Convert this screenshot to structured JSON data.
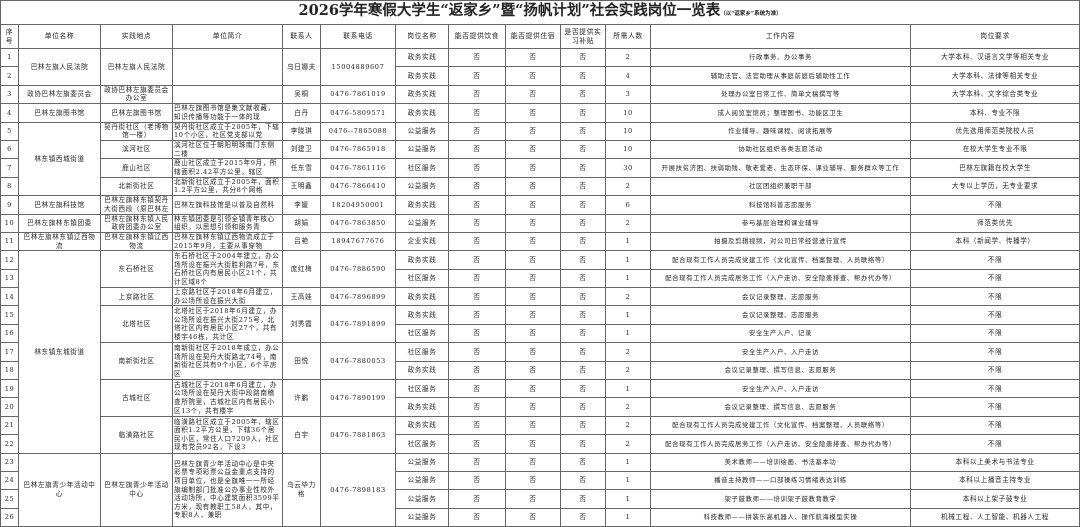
{
  "title": "2026学年寒假大学生“返家乡”暨“扬帆计划”社会实践岗位一览表",
  "title_note": "（以“返家乡”系统为准）",
  "headers": [
    "序号",
    "单位名称",
    "实践地点",
    "单位简介",
    "联系人",
    "联系电话",
    "岗位名称",
    "能否提供饮食",
    "能否提供住宿",
    "是否提供实习补贴",
    "所需人数",
    "工作内容",
    "岗位要求"
  ],
  "units": [
    {
      "name": "巴林左旗人民法院",
      "sites": [
        {
          "location": "巴林左旗人民法院",
          "intro": "",
          "contact": "乌日娜夫",
          "phone": "15004889607",
          "positions": [
            {
              "no": "1",
              "title": "政务实践",
              "food": "否",
              "lodging": "否",
              "subsidy": "否",
              "count": "2",
              "content": "行政事务、办公事务",
              "requirement": "大学本科、汉语言文学等相关专业"
            },
            {
              "no": "2",
              "title": "政务实践",
              "food": "否",
              "lodging": "否",
              "subsidy": "否",
              "count": "4",
              "content": "辅助法官、法官助理从事庭前庭后辅助性工作",
              "requirement": "大学本科、法律等相关专业"
            }
          ]
        }
      ]
    },
    {
      "name": "政协巴林左旗委员会",
      "sites": [
        {
          "location": "政协巴林左旗委员会办公室",
          "intro": "",
          "contact": "吴桐",
          "phone": "0476-7861019",
          "positions": [
            {
              "no": "3",
              "title": "政务实践",
              "food": "否",
              "lodging": "否",
              "subsidy": "否",
              "count": "3",
              "content": "处理办公室日常工作、简单文稿撰写等",
              "requirement": "大学本科、文字综合类专业"
            }
          ]
        }
      ]
    },
    {
      "name": "巴林左旗图书馆",
      "sites": [
        {
          "location": "巴林左旗图书馆",
          "intro": "巴林左旗图书馆是集文献收藏，知识传播等功能于一体的现",
          "contact": "白丹",
          "phone": "0476-5809571",
          "positions": [
            {
              "no": "4",
              "title": "政务实践",
              "food": "否",
              "lodging": "否",
              "subsidy": "否",
              "count": "10",
              "content": "成人阅览室馆员；整理图书、功能区卫生",
              "requirement": "本科、专业不限"
            }
          ]
        }
      ]
    },
    {
      "name": "林东镇西城街道",
      "sites": [
        {
          "location": "契丹街社区（老博物馆一楼）",
          "intro": "契丹街社区成立于2005年，下辖10个小区，社区党支部以党",
          "contact": "李晓琪",
          "phone": "0476--7865088",
          "positions": [
            {
              "no": "5",
              "title": "公益服务",
              "food": "否",
              "lodging": "否",
              "subsidy": "否",
              "count": "10",
              "content": "作业辅导、趣味课程、阅读拓展等",
              "requirement": "优先选用师范类院校人员"
            }
          ]
        },
        {
          "location": "滨河社区",
          "intro": "滨河社区位于朝阳明珠南门东侧二楼",
          "contact": "刘建卫",
          "phone": "0476-7865918",
          "positions": [
            {
              "no": "6",
              "title": "公益服务",
              "food": "否",
              "lodging": "否",
              "subsidy": "否",
              "count": "10",
              "content": "协助社区组织各类志愿活动",
              "requirement": "在校大学生专业不限"
            }
          ]
        },
        {
          "location": "鹿山社区",
          "intro": "鹿山社区成立于2015年9月，所辖面积2.42平方公里，辖区",
          "contact": "任东雪",
          "phone": "0476-7861116",
          "positions": [
            {
              "no": "7",
              "title": "社区服务",
              "food": "否",
              "lodging": "否",
              "subsidy": "否",
              "count": "30",
              "content": "开展扶贫济困、扶弱助残、敬老爱老、生态环保、课业辅导、服务群众等工作",
              "requirement": "巴林左旗籍在校大学生"
            }
          ]
        },
        {
          "location": "北新街社区",
          "intro": "北新街社区成立于2005年，面积1.2平方公里，共分8个网格",
          "contact": "王明鑫",
          "phone": "0476-7866410",
          "positions": [
            {
              "no": "8",
              "title": "公益服务",
              "food": "否",
              "lodging": "否",
              "subsidy": "否",
              "count": "2",
              "content": "社区团组织兼职干部",
              "requirement": "大专以上学历，无专业要求"
            }
          ]
        }
      ]
    },
    {
      "name": "巴林左旗科技馆",
      "sites": [
        {
          "location": "巴林左旗林东镇契丹大街西段（原巴林左",
          "intro": "巴林左旗科技馆是以普及自然科",
          "contact": "李媛",
          "phone": "18204950001",
          "positions": [
            {
              "no": "9",
              "title": "政务实践",
              "food": "否",
              "lodging": "否",
              "subsidy": "否",
              "count": "6",
              "content": "科技馆科普志愿服务",
              "requirement": "不限"
            }
          ]
        }
      ]
    },
    {
      "name": "巴林左旗林东镇团委",
      "sites": [
        {
          "location": "巴林左旗林东镇人民政府团委办公室",
          "intro": "林东镇团委是引领全镇青年核心组织，以思想引领和服务青",
          "contact": "胡娟",
          "phone": "0476-7863850",
          "positions": [
            {
              "no": "10",
              "title": "公益服务",
              "food": "否",
              "lodging": "否",
              "subsidy": "否",
              "count": "2",
              "content": "参与基层治理和课业辅导",
              "requirement": "师范类优先"
            }
          ]
        }
      ]
    },
    {
      "name": "巴林左旗林东镇辽西物流",
      "sites": [
        {
          "location": "巴林左旗林东镇辽西物流",
          "intro": "巴林左旗林东镇辽西物流成立于2015年9月，主要从事穿物",
          "contact": "吕艳",
          "phone": "18947677676",
          "positions": [
            {
              "no": "11",
              "title": "企业实践",
              "food": "否",
              "lodging": "否",
              "subsidy": "否",
              "count": "1",
              "content": "拍摄及剪辑视频，对公司日常经营进行宣传",
              "requirement": "本科（新闻学、传播学）"
            }
          ]
        }
      ]
    },
    {
      "name": "林东镇东城街道",
      "sites": [
        {
          "location": "东石桥社区",
          "intro": "东石桥社区于2004年建立，办公场所设在振兴大街胜利路7号，东石桥社区内有居民小区21个，共计区域8个",
          "contact": "庞红梅",
          "phone": "0476-7886590",
          "positions": [
            {
              "no": "12",
              "title": "政务实践",
              "food": "否",
              "lodging": "否",
              "subsidy": "否",
              "count": "1",
              "content": "配合现有工作人员完成党建工作（文化宣传、档案整理、人员联络等）",
              "requirement": "不限"
            },
            {
              "no": "13",
              "title": "社区服务",
              "food": "否",
              "lodging": "否",
              "subsidy": "否",
              "count": "1",
              "content": "配合现有工作人员完成居务工作（入户走访、安全隐患排查、帮办代办等）",
              "requirement": "不限"
            }
          ]
        },
        {
          "location": "上京路社区",
          "intro": "上京路社区于2018年6月建立，办公场所设在振兴大街",
          "contact": "王高娃",
          "phone": "0476-7896899",
          "positions": [
            {
              "no": "14",
              "title": "政务实践",
              "food": "否",
              "lodging": "否",
              "subsidy": "否",
              "count": "2",
              "content": "会议记录整理、志愿服务",
              "requirement": "不限"
            }
          ]
        },
        {
          "location": "北塔社区",
          "intro": "北塔社区于2018年6月建立，办公场所设在振兴大街275号，北塔社区内有居民小区27个，共有楼宇46栋，共计区",
          "contact": "刘秀霞",
          "phone": "0476-7891899",
          "positions": [
            {
              "no": "15",
              "title": "政务实践",
              "food": "否",
              "lodging": "否",
              "subsidy": "否",
              "count": "1",
              "content": "会议记录整理、志愿服务",
              "requirement": "不限"
            },
            {
              "no": "16",
              "title": "社区服务",
              "food": "否",
              "lodging": "否",
              "subsidy": "否",
              "count": "1",
              "content": "安全生产入户、记录",
              "requirement": "不限"
            }
          ]
        },
        {
          "location": "南新街社区",
          "intro": "南新街社区于2018年成立，办公场所设在契丹大街路北74号，南新街社区共有9个小区，6个平房区",
          "contact": "田悦",
          "phone": "0476-7880053",
          "positions": [
            {
              "no": "17",
              "title": "社区服务",
              "food": "否",
              "lodging": "否",
              "subsidy": "否",
              "count": "2",
              "content": "安全生产入户、入户走访",
              "requirement": "不限"
            },
            {
              "no": "18",
              "title": "政务实践",
              "food": "否",
              "lodging": "否",
              "subsidy": "否",
              "count": "2",
              "content": "会议记录整理、撰写信息、志愿服务",
              "requirement": "不限"
            }
          ]
        },
        {
          "location": "古城社区",
          "intro": "古城社区于2018年6月建立，办公场所设在契丹大街中段路南稽查所院里，古城社区内有居民小区13个，共有楼宇",
          "contact": "许鹏",
          "phone": "0476-7890199",
          "positions": [
            {
              "no": "19",
              "title": "社区服务",
              "food": "否",
              "lodging": "否",
              "subsidy": "否",
              "count": "1",
              "content": "安全生产入户、入户走访",
              "requirement": "不限"
            },
            {
              "no": "20",
              "title": "政务实践",
              "food": "否",
              "lodging": "否",
              "subsidy": "否",
              "count": "2",
              "content": "会议记录整理、撰写信息、志愿服务",
              "requirement": "不限"
            }
          ]
        },
        {
          "location": "临潢路社区",
          "intro": "临潢路社区成立于2005年，辖区面积1.2平方公里，下辖36个居民小区，常住人口7209人，社区现有党员92名，下设3",
          "contact": "白宇",
          "phone": "0476-7881863",
          "positions": [
            {
              "no": "21",
              "title": "政务实践",
              "food": "否",
              "lodging": "否",
              "subsidy": "否",
              "count": "2",
              "content": "配合现有工作人员完成党建工作（文化宣传、档案整理、人员联络等）",
              "requirement": "不限"
            },
            {
              "no": "22",
              "title": "社区服务",
              "food": "否",
              "lodging": "否",
              "subsidy": "否",
              "count": "2",
              "content": "配合现有工作人员完成居务工作（入户走访、安全隐患排查、帮办代办等）",
              "requirement": "不限"
            }
          ]
        }
      ]
    },
    {
      "name": "巴林左旗青少年活动中心",
      "sites": [
        {
          "location": "巴林左旗青少年活动中心",
          "intro": "巴林左旗青少年活动中心是中央彩票专项彩票公益金重点支持的项目单位，也是全旗唯一一所经旗编制部门批准公办事业性校外活动场所，中心建筑面积3599平方米，现有教职工58人，其中，专职8人，兼职",
          "contact": "乌云毕力格",
          "phone": "0476-7898183",
          "positions": [
            {
              "no": "23",
              "title": "公益服务",
              "food": "否",
              "lodging": "否",
              "subsidy": "否",
              "count": "1",
              "content": "美术教师——培训绘画、书法基本功",
              "requirement": "本科以上美术与书法专业"
            },
            {
              "no": "24",
              "title": "公益服务",
              "food": "否",
              "lodging": "否",
              "subsidy": "否",
              "count": "1",
              "content": "播音主持教师——口部操练习情绪表达训练",
              "requirement": "本科以上播音主持专业"
            },
            {
              "no": "25",
              "title": "公益服务",
              "food": "否",
              "lodging": "否",
              "subsidy": "否",
              "count": "1",
              "content": "架子鼓教师——培训架子鼓教育教学",
              "requirement": "本科以上架子鼓专业"
            },
            {
              "no": "26",
              "title": "公益服务",
              "food": "否",
              "lodging": "否",
              "subsidy": "否",
              "count": "1",
              "content": "科技教师——拼装乐高机器人、操作航海模型实操",
              "requirement": "机械工程、人工智能、机器人工程"
            }
          ]
        }
      ]
    }
  ]
}
